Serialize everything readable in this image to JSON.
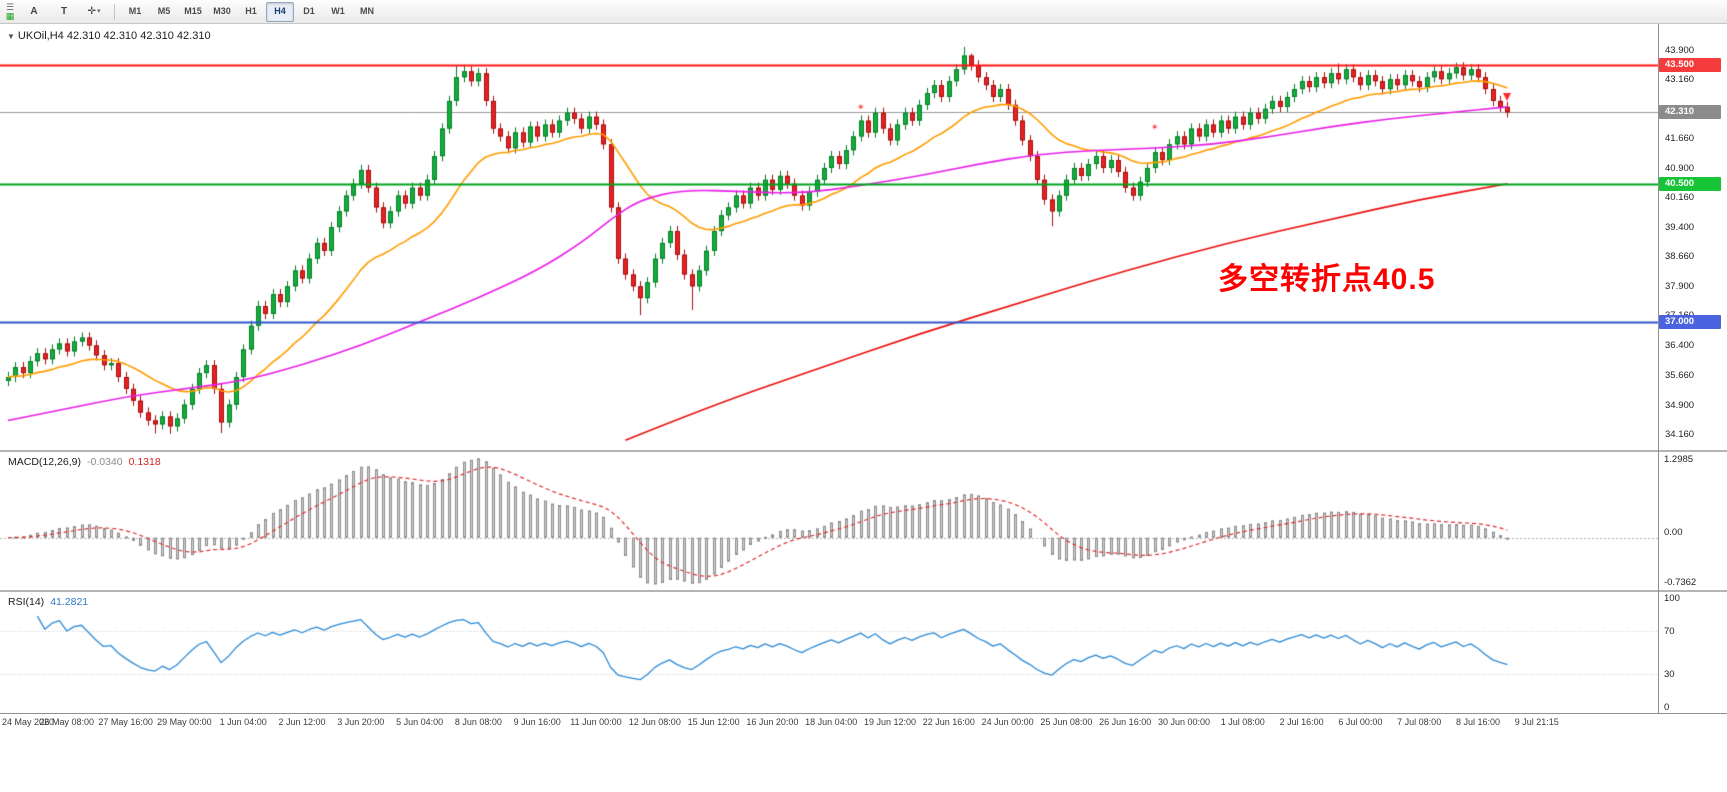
{
  "icons": {
    "menu": "☰",
    "chart_doc": "▦",
    "crosshair": "✛",
    "caret_down": "▾",
    "symbol_collapse": "▼"
  },
  "toolbar": {
    "a_label": "A",
    "t_label": "T",
    "timeframes": [
      {
        "label": "M1",
        "active": false
      },
      {
        "label": "M5",
        "active": false
      },
      {
        "label": "M15",
        "active": false
      },
      {
        "label": "M30",
        "active": false
      },
      {
        "label": "H1",
        "active": false
      },
      {
        "label": "H4",
        "active": true
      },
      {
        "label": "D1",
        "active": false
      },
      {
        "label": "W1",
        "active": false
      },
      {
        "label": "MN",
        "active": false
      }
    ]
  },
  "chart": {
    "symbol_line": "UKOil,H4 42.310 42.310 42.310 42.310",
    "annotation": {
      "text": "多空转折点40.5",
      "color": "#ff0000"
    },
    "price_axis": [
      "43.900",
      "43.160",
      "42.400",
      "41.660",
      "40.900",
      "40.160",
      "39.400",
      "38.660",
      "37.900",
      "37.160",
      "36.400",
      "35.660",
      "34.900",
      "34.160"
    ],
    "levels": [
      {
        "price": 43.5,
        "label": "43.500",
        "line_color": "#ff1414",
        "badge_bg": "#f53b3b",
        "width": 2,
        "current": false
      },
      {
        "price": 42.31,
        "label": "42.310",
        "line_color": "#9a9a9a",
        "badge_bg": "#8b8b8b",
        "width": 1,
        "current": true
      },
      {
        "price": 40.5,
        "label": "40.500",
        "line_color": "#00a21f",
        "badge_bg": "#17c437",
        "width": 2,
        "current": false
      },
      {
        "price": 37.0,
        "label": "37.000",
        "line_color": "#2f55c9",
        "badge_bg": "#4b63e0",
        "width": 2,
        "current": false
      }
    ]
  },
  "macd": {
    "label": "MACD(12,26,9)",
    "value": "-0.0340",
    "signal_value": "0.1318",
    "axis": [
      "1.2985",
      "0.00",
      "-0.7362"
    ]
  },
  "rsi": {
    "label": "RSI(14)",
    "value": "41.2821",
    "axis": [
      "100",
      "70",
      "30",
      "0"
    ]
  },
  "time_axis": [
    "24 May 2020",
    "26 May 08:00",
    "27 May 16:00",
    "29 May 00:00",
    "1 Jun 04:00",
    "2 Jun 12:00",
    "3 Jun 20:00",
    "5 Jun 04:00",
    "8 Jun 08:00",
    "9 Jun 16:00",
    "11 Jun 00:00",
    "12 Jun 08:00",
    "15 Jun 12:00",
    "16 Jun 20:00",
    "18 Jun 04:00",
    "19 Jun 12:00",
    "22 Jun 16:00",
    "24 Jun 00:00",
    "25 Jun 08:00",
    "26 Jun 16:00",
    "30 Jun 00:00",
    "1 Jul 08:00",
    "2 Jul 16:00",
    "6 Jul 00:00",
    "7 Jul 08:00",
    "8 Jul 16:00",
    "9 Jul 21:15"
  ],
  "chart_data": {
    "type": "candlestick",
    "symbol": "UKOil",
    "timeframe": "H4",
    "title": "UKOil,H4",
    "ylim": [
      33.75,
      44.55
    ],
    "first_open": 35.5,
    "closes": [
      35.6,
      35.85,
      35.7,
      36.0,
      36.2,
      36.05,
      36.3,
      36.45,
      36.25,
      36.5,
      36.6,
      36.4,
      36.15,
      35.9,
      35.95,
      35.6,
      35.3,
      35.0,
      34.7,
      34.5,
      34.4,
      34.6,
      34.35,
      34.55,
      34.9,
      35.3,
      35.7,
      35.9,
      35.3,
      34.45,
      34.9,
      35.6,
      36.3,
      36.9,
      37.4,
      37.2,
      37.7,
      37.5,
      37.9,
      38.3,
      38.1,
      38.6,
      39.0,
      38.8,
      39.4,
      39.8,
      40.2,
      40.5,
      40.85,
      40.4,
      39.9,
      39.5,
      39.8,
      40.2,
      40.0,
      40.4,
      40.2,
      40.6,
      41.2,
      41.9,
      42.6,
      43.2,
      43.35,
      43.1,
      43.3,
      42.6,
      41.9,
      41.7,
      41.4,
      41.8,
      41.55,
      41.95,
      41.7,
      42.0,
      41.8,
      42.1,
      42.3,
      42.15,
      41.9,
      42.2,
      42.0,
      41.5,
      39.9,
      38.6,
      38.2,
      37.9,
      37.6,
      38.0,
      38.6,
      39.0,
      39.3,
      38.7,
      38.2,
      37.9,
      38.3,
      38.8,
      39.3,
      39.7,
      39.9,
      40.2,
      40.0,
      40.4,
      40.2,
      40.6,
      40.35,
      40.7,
      40.5,
      40.2,
      39.95,
      40.3,
      40.6,
      40.9,
      41.2,
      41.0,
      41.35,
      41.7,
      42.1,
      41.8,
      42.3,
      41.9,
      41.6,
      42.0,
      42.3,
      42.1,
      42.5,
      42.8,
      43.0,
      42.7,
      43.1,
      43.4,
      43.75,
      43.5,
      43.2,
      43.0,
      42.7,
      42.9,
      42.5,
      42.1,
      41.6,
      41.2,
      40.6,
      40.1,
      39.8,
      40.2,
      40.6,
      40.9,
      40.7,
      41.0,
      41.2,
      40.9,
      41.1,
      40.8,
      40.4,
      40.2,
      40.55,
      40.9,
      41.3,
      41.1,
      41.5,
      41.7,
      41.5,
      41.9,
      41.7,
      42.0,
      41.8,
      42.1,
      41.9,
      42.2,
      42.0,
      42.3,
      42.15,
      42.4,
      42.6,
      42.45,
      42.7,
      42.9,
      43.1,
      42.95,
      43.2,
      43.05,
      43.3,
      43.15,
      43.4,
      43.2,
      43.0,
      43.25,
      43.1,
      42.9,
      43.15,
      43.0,
      43.25,
      43.1,
      42.95,
      43.2,
      43.35,
      43.15,
      43.3,
      43.45,
      43.25,
      43.4,
      43.2,
      42.9,
      42.6,
      42.45,
      42.31
    ],
    "extra_wicks": [
      {
        "bar": 20,
        "low": 34.17
      },
      {
        "bar": 22,
        "low": 34.16
      },
      {
        "bar": 29,
        "low": 34.18
      },
      {
        "bar": 61,
        "high": 43.5
      },
      {
        "bar": 62,
        "high": 43.52
      },
      {
        "bar": 86,
        "low": 37.17
      },
      {
        "bar": 93,
        "low": 37.3
      },
      {
        "bar": 130,
        "high": 43.97
      },
      {
        "bar": 131,
        "high": 43.8
      },
      {
        "bar": 142,
        "low": 39.42
      },
      {
        "bar": 181,
        "high": 43.55
      },
      {
        "bar": 197,
        "high": 43.57
      }
    ],
    "up_color": "#12ad3d",
    "up_border": "#0a7d2a",
    "down_color": "#e62222",
    "down_border": "#a60f0f",
    "ma_overlays": [
      {
        "name": "fast-ma",
        "type": "ema",
        "period": 21,
        "color": "#ff9d00"
      },
      {
        "name": "mid-ma",
        "type": "anchors",
        "color": "#ea1fea",
        "anchors": [
          [
            0,
            34.5
          ],
          [
            8,
            34.8
          ],
          [
            16,
            35.1
          ],
          [
            24,
            35.3
          ],
          [
            32,
            35.5
          ],
          [
            40,
            35.9
          ],
          [
            48,
            36.4
          ],
          [
            56,
            37.0
          ],
          [
            64,
            37.6
          ],
          [
            72,
            38.3
          ],
          [
            78,
            39.0
          ],
          [
            82,
            39.6
          ],
          [
            86,
            40.1
          ],
          [
            92,
            40.35
          ],
          [
            100,
            40.3
          ],
          [
            108,
            40.25
          ],
          [
            116,
            40.45
          ],
          [
            124,
            40.7
          ],
          [
            132,
            41.0
          ],
          [
            140,
            41.25
          ],
          [
            148,
            41.35
          ],
          [
            156,
            41.4
          ],
          [
            164,
            41.5
          ],
          [
            172,
            41.7
          ],
          [
            180,
            41.95
          ],
          [
            188,
            42.15
          ],
          [
            196,
            42.3
          ],
          [
            204,
            42.45
          ]
        ]
      },
      {
        "name": "long-ma",
        "type": "anchors",
        "color": "#ec1010",
        "anchors": [
          [
            84,
            34.0
          ],
          [
            96,
            34.9
          ],
          [
            110,
            35.8
          ],
          [
            124,
            36.7
          ],
          [
            138,
            37.5
          ],
          [
            152,
            38.3
          ],
          [
            166,
            39.0
          ],
          [
            180,
            39.6
          ],
          [
            192,
            40.1
          ],
          [
            204,
            40.5
          ]
        ]
      }
    ],
    "macd": {
      "fast": 12,
      "slow": 26,
      "signal": 9,
      "hist_color": "#cfcfcf",
      "hist_border": "#909090",
      "signal_color": "#e03030"
    },
    "rsi": {
      "period": 14,
      "color": "#2e8bd6",
      "levels": [
        70,
        30
      ]
    },
    "markers": [
      {
        "bar": 116,
        "price": 42.45,
        "glyph": "star",
        "color": "#ff2a2a"
      },
      {
        "bar": 156,
        "price": 41.95,
        "glyph": "star",
        "color": "#ff2a2a"
      },
      {
        "bar": 204,
        "price": 42.6,
        "glyph": "arrow-down",
        "color": "#ff2a2a"
      }
    ]
  }
}
